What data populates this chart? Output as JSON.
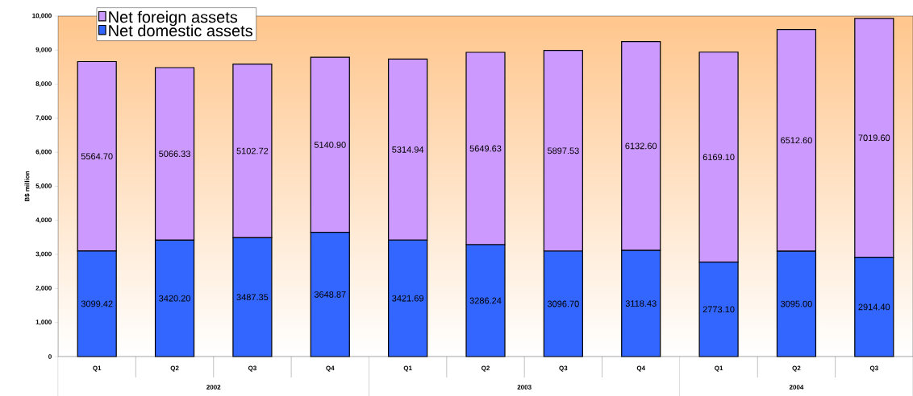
{
  "chart_data": {
    "type": "bar",
    "stacked": true,
    "ylabel": "B$ million",
    "categories": [
      "Q1",
      "Q2",
      "Q3",
      "Q4",
      "Q1",
      "Q2",
      "Q3",
      "Q4",
      "Q1",
      "Q2",
      "Q3"
    ],
    "annotations": [
      "2002",
      "2003",
      "2004"
    ],
    "series": [
      {
        "name": "Net domestic assets",
        "color": "#3366ff",
        "values": [
          3099.42,
          3420.2,
          3487.35,
          3648.87,
          3421.69,
          3286.24,
          3096.7,
          3118.43,
          2773.1,
          3095.0,
          2914.4
        ],
        "value_labels": [
          "3099.42",
          "3420.20",
          "3487.35",
          "3648.87",
          "3421.69",
          "3286.24",
          "3096.70",
          "3118.43",
          "2773.10",
          "3095.00",
          "2914.40"
        ]
      },
      {
        "name": "Net foreign assets",
        "color": "#cc99ff",
        "values": [
          5564.7,
          5066.33,
          5102.72,
          5140.9,
          5314.94,
          5649.63,
          5897.53,
          6132.6,
          6169.1,
          6512.6,
          7019.6
        ],
        "value_labels": [
          "5564.70",
          "5066.33",
          "5102.72",
          "5140.90",
          "5314.94",
          "5649.63",
          "5897.53",
          "6132.60",
          "6169.10",
          "6512.60",
          "7019.60"
        ]
      }
    ],
    "ylim": [
      0,
      10000
    ],
    "yticks": [
      {
        "value": 0,
        "label": "0"
      },
      {
        "value": 1000,
        "label": "1,000"
      },
      {
        "value": 2000,
        "label": "2,000"
      },
      {
        "value": 3000,
        "label": "3,000"
      },
      {
        "value": 4000,
        "label": "4,000"
      },
      {
        "value": 5000,
        "label": "5,000"
      },
      {
        "value": 6000,
        "label": "6,000"
      },
      {
        "value": 7000,
        "label": "7,000"
      },
      {
        "value": 8000,
        "label": "8,000"
      },
      {
        "value": 9000,
        "label": "9,000"
      },
      {
        "value": 10000,
        "label": "10,000"
      }
    ],
    "legend": "top left",
    "grid": false
  }
}
